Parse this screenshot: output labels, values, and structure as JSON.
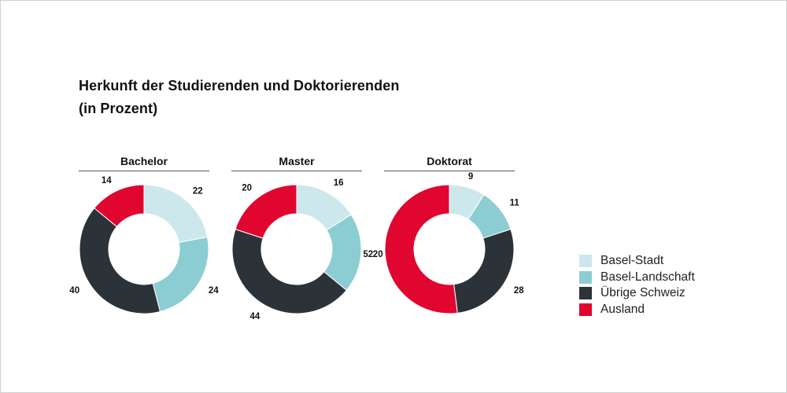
{
  "title_line1": "Herkunft der Studierenden und Doktorierenden",
  "title_line2": "(in Prozent)",
  "colors": {
    "Basel-Stadt": "#cde8ec",
    "Basel-Landschaft": "#8bcdd3",
    "Übrige Schweiz": "#2b3339",
    "Ausland": "#e0062f"
  },
  "legend": [
    {
      "label": "Basel-Stadt",
      "color": "#cde8ec"
    },
    {
      "label": "Basel-Landschaft",
      "color": "#8bcdd3"
    },
    {
      "label": "Übrige Schweiz",
      "color": "#2b3339"
    },
    {
      "label": "Ausland",
      "color": "#e0062f"
    }
  ],
  "chart_data": [
    {
      "type": "pie",
      "variant": "donut",
      "title": "Bachelor",
      "categories": [
        "Basel-Stadt",
        "Basel-Landschaft",
        "Übrige Schweiz",
        "Ausland"
      ],
      "values": [
        22,
        24,
        40,
        14
      ],
      "unit": "%"
    },
    {
      "type": "pie",
      "variant": "donut",
      "title": "Master",
      "categories": [
        "Basel-Stadt",
        "Basel-Landschaft",
        "Übrige Schweiz",
        "Ausland"
      ],
      "values": [
        16,
        20,
        44,
        20
      ],
      "unit": "%"
    },
    {
      "type": "pie",
      "variant": "donut",
      "title": "Doktorat",
      "categories": [
        "Basel-Stadt",
        "Basel-Landschaft",
        "Übrige Schweiz",
        "Ausland"
      ],
      "values": [
        9,
        11,
        28,
        52
      ],
      "unit": "%"
    }
  ]
}
